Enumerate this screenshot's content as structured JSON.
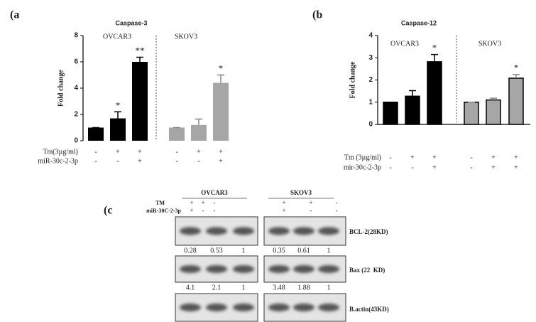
{
  "chart_data": [
    {
      "type": "bar",
      "panel": "(a",
      "title": "Caspase-3",
      "ylabel": "Fold change",
      "groups": [
        "OVCAR3",
        "SKOV3"
      ],
      "categories": [
        null,
        null,
        null,
        null,
        null,
        null
      ],
      "values": [
        1,
        1.7,
        6.0,
        1.0,
        1.2,
        4.4
      ],
      "errors": [
        0,
        0.5,
        0.35,
        0,
        0.45,
        0.6
      ],
      "colors": [
        "#000000",
        "#000000",
        "#000000",
        "#a6a6a6",
        "#a6a6a6",
        "#a6a6a6"
      ],
      "significance": [
        null,
        "*",
        "**",
        null,
        null,
        "*"
      ],
      "conditions": [
        {
          "label": "Tm(3µg/ml)",
          "signs": [
            "-",
            "+",
            "+",
            "-",
            "+",
            "+"
          ]
        },
        {
          "label": "miR-30c-2-3p",
          "signs": [
            "-",
            "-",
            "+",
            "-",
            "-",
            "+"
          ]
        }
      ],
      "ylim": [
        0,
        8
      ],
      "yticks": [
        0,
        2,
        4,
        6,
        8
      ]
    },
    {
      "type": "bar",
      "panel": "(b",
      "title": "Caspase-12",
      "ylabel": "Fold change",
      "groups": [
        "OVCAR3",
        "SKOV3"
      ],
      "categories": [
        null,
        null,
        null,
        null,
        null,
        null
      ],
      "values": [
        1,
        1.27,
        2.82,
        1.0,
        1.1,
        2.08
      ],
      "errors": [
        0,
        0.25,
        0.33,
        0,
        0.08,
        0.17
      ],
      "colors": [
        "#000000",
        "#000000",
        "#000000",
        "#a6a6a6",
        "#a6a6a6",
        "#a6a6a6"
      ],
      "edgecolor": "#000000",
      "significance": [
        null,
        null,
        "*",
        null,
        null,
        "*"
      ],
      "conditions": [
        {
          "label": "Tm (3µg/ml)",
          "signs": [
            "-",
            "+",
            "+",
            "-",
            "+",
            "+"
          ]
        },
        {
          "label": "mir-30c-2-3p",
          "signs": [
            "-",
            "-",
            "+",
            "-",
            "+",
            "+"
          ]
        }
      ],
      "ylim": [
        0,
        4
      ],
      "yticks": [
        0,
        1,
        2,
        3,
        4
      ]
    }
  ],
  "blot": {
    "panel": "(c",
    "groups": [
      "OVCAR3",
      "SKOV3"
    ],
    "treatments": [
      {
        "label": "TM",
        "signs": [
          [
            "+",
            "+",
            "-"
          ],
          [
            "+",
            "+",
            "-"
          ]
        ]
      },
      {
        "label": "miR-30C-2-3p",
        "signs": [
          [
            "+",
            "-",
            "-"
          ],
          [
            "+",
            "-",
            "-"
          ]
        ]
      }
    ],
    "bands": [
      {
        "label": "BCL-2(28KD)",
        "values": [
          [
            0.28,
            0.53,
            1
          ],
          [
            0.35,
            0.61,
            1
          ]
        ]
      },
      {
        "label": "Bax (22  KD)",
        "values": [
          [
            4.1,
            2.1,
            1
          ],
          [
            3.48,
            1.88,
            1
          ]
        ]
      },
      {
        "label": "B.actin(43KD)"
      }
    ]
  }
}
